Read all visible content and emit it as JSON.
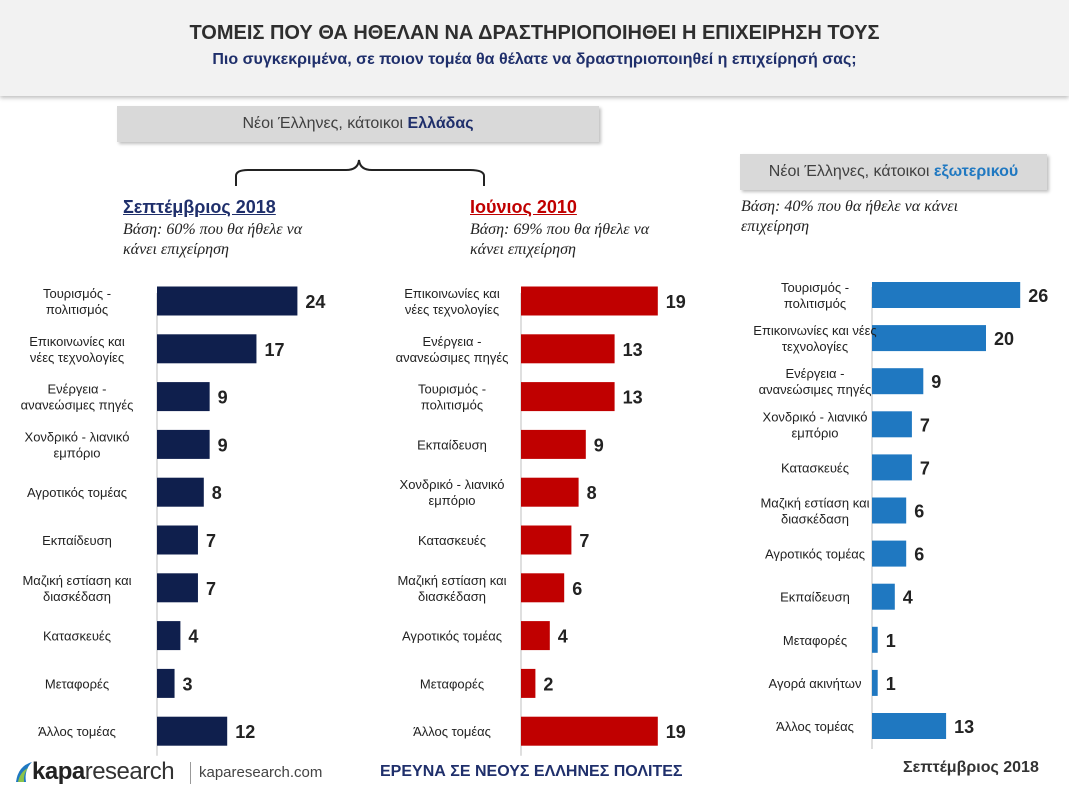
{
  "header": {
    "title": "ΤΟΜΕΙΣ ΠΟΥ ΘΑ ΗΘΕΛΑΝ ΝΑ ΔΡΑΣΤΗΡΙΟΠΟΙΗΘΕΙ Η ΕΠΙΧΕΙΡΗΣΗ ΤΟΥΣ",
    "subtitle": "Πιο συγκεκριμένα, σε ποιον τομέα θα θέλατε να δραστηριοποιηθεί η επιχείρησή σας;"
  },
  "groups": {
    "greece_prefix": "Νέοι Έλληνες, κάτοικοι ",
    "greece_highlight": "Ελλάδας",
    "abroad_prefix": "Νέοι Έλληνες, κάτοικοι ",
    "abroad_highlight": "εξωτερικού"
  },
  "colors": {
    "sep2018": "#0f1f4d",
    "jun2010": "#c00000",
    "abroad": "#1f78c1",
    "sep2018_heading": "#1f2f6b",
    "jun2010_heading": "#c00000",
    "abroad_highlight": "#1f78c1"
  },
  "chart_data": [
    {
      "type": "bar",
      "orientation": "horizontal",
      "heading": "Σεπτέμβριος 2018",
      "base_line1": "Βάση: 60% που θα ήθελε να",
      "base_line2": "κάνει επιχείρηση",
      "categories": [
        [
          "Τουρισμός -",
          "πολιτισμός"
        ],
        [
          "Επικοινωνίες και",
          "νέες τεχνολογίες"
        ],
        [
          "Ενέργεια -",
          "ανανεώσιμες πηγές"
        ],
        [
          "Χονδρικό - λιανικό",
          "εμπόριο"
        ],
        [
          "Αγροτικός τομέας"
        ],
        [
          "Εκπαίδευση"
        ],
        [
          "Μαζική εστίαση και",
          "διασκέδαση"
        ],
        [
          "Κατασκευές"
        ],
        [
          "Μεταφορές"
        ],
        [
          "Άλλος τομέας"
        ]
      ],
      "values": [
        24,
        17,
        9,
        9,
        8,
        7,
        7,
        4,
        3,
        12
      ]
    },
    {
      "type": "bar",
      "orientation": "horizontal",
      "heading": "Ιούνιος 2010",
      "base_line1": "Βάση: 69% που θα ήθελε να",
      "base_line2": "κάνει επιχείρηση",
      "categories": [
        [
          "Επικοινωνίες και",
          "νέες τεχνολογίες"
        ],
        [
          "Ενέργεια -",
          "ανανεώσιμες πηγές"
        ],
        [
          "Τουρισμός -",
          "πολιτισμός"
        ],
        [
          "Εκπαίδευση"
        ],
        [
          "Χονδρικό - λιανικό",
          "εμπόριο"
        ],
        [
          "Κατασκευές"
        ],
        [
          "Μαζική εστίαση και",
          "διασκέδαση"
        ],
        [
          "Αγροτικός τομέας"
        ],
        [
          "Μεταφορές"
        ],
        [
          "Άλλος τομέας"
        ]
      ],
      "values": [
        19,
        13,
        13,
        9,
        8,
        7,
        6,
        4,
        2,
        19
      ]
    },
    {
      "type": "bar",
      "orientation": "horizontal",
      "base_line1": "Βάση: 40% που θα ήθελε να κάνει",
      "base_line2": "επιχείρηση",
      "categories": [
        [
          "Τουρισμός -",
          "πολιτισμός"
        ],
        [
          "Επικοινωνίες και νέες",
          "τεχνολογίες"
        ],
        [
          "Ενέργεια -",
          "ανανεώσιμες πηγές"
        ],
        [
          "Χονδρικό - λιανικό",
          "εμπόριο"
        ],
        [
          "Κατασκευές"
        ],
        [
          "Μαζική εστίαση και",
          "διασκέδαση"
        ],
        [
          "Αγροτικός τομέας"
        ],
        [
          "Εκπαίδευση"
        ],
        [
          "Μεταφορές"
        ],
        [
          "Αγορά ακινήτων"
        ],
        [
          "Άλλος τομέας"
        ]
      ],
      "values": [
        26,
        20,
        9,
        7,
        7,
        6,
        6,
        4,
        1,
        1,
        13
      ]
    }
  ],
  "footer": {
    "logo_kapa": "kapa",
    "logo_research": "research",
    "url": "kaparesearch.com",
    "center": "ΕΡΕΥΝΑ ΣΕ ΝΕΟΥΣ ΕΛΛΗΝΕΣ ΠΟΛΙΤΕΣ",
    "date": "Σεπτέμβριος 2018"
  }
}
